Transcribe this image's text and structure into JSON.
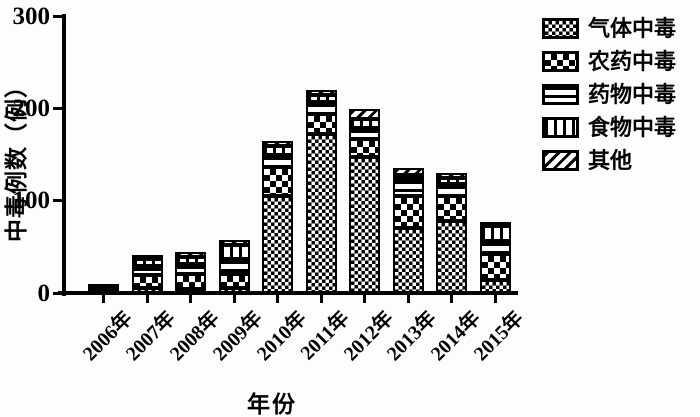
{
  "chart_data": {
    "type": "bar",
    "stacked": true,
    "title": "",
    "xlabel": "年份",
    "ylabel": "中毒例数（例）",
    "ylim": [
      0,
      300
    ],
    "yticks": [
      0,
      100,
      200,
      300
    ],
    "grid": false,
    "legend_position": "top-right",
    "colors": {
      "foreground": "#000000",
      "background": "#ffffff"
    },
    "categories": [
      "2006年",
      "2007年",
      "2008年",
      "2009年",
      "2010年",
      "2011年",
      "2012年",
      "2013年",
      "2014年",
      "2015年"
    ],
    "series": [
      {
        "name": "气体中毒",
        "pattern": "fine-checker",
        "values": [
          2,
          5,
          4,
          5,
          105,
          172,
          147,
          70,
          78,
          14
        ]
      },
      {
        "name": "农药中毒",
        "pattern": "coarse-checker",
        "values": [
          2,
          15,
          17,
          16,
          32,
          22,
          20,
          35,
          27,
          28
        ]
      },
      {
        "name": "药物中毒",
        "pattern": "horizontal-lines",
        "values": [
          2,
          9,
          10,
          16,
          12,
          13,
          12,
          18,
          13,
          14
        ]
      },
      {
        "name": "食物中毒",
        "pattern": "vertical-lines",
        "values": [
          1,
          8,
          8,
          15,
          10,
          7,
          9,
          5,
          7,
          17
        ]
      },
      {
        "name": "其他",
        "pattern": "diagonal-lines",
        "values": [
          0,
          4,
          5,
          6,
          6,
          6,
          11,
          7,
          5,
          2
        ]
      }
    ],
    "totals": [
      7,
      41,
      44,
      58,
      165,
      220,
      199,
      135,
      130,
      75
    ]
  }
}
